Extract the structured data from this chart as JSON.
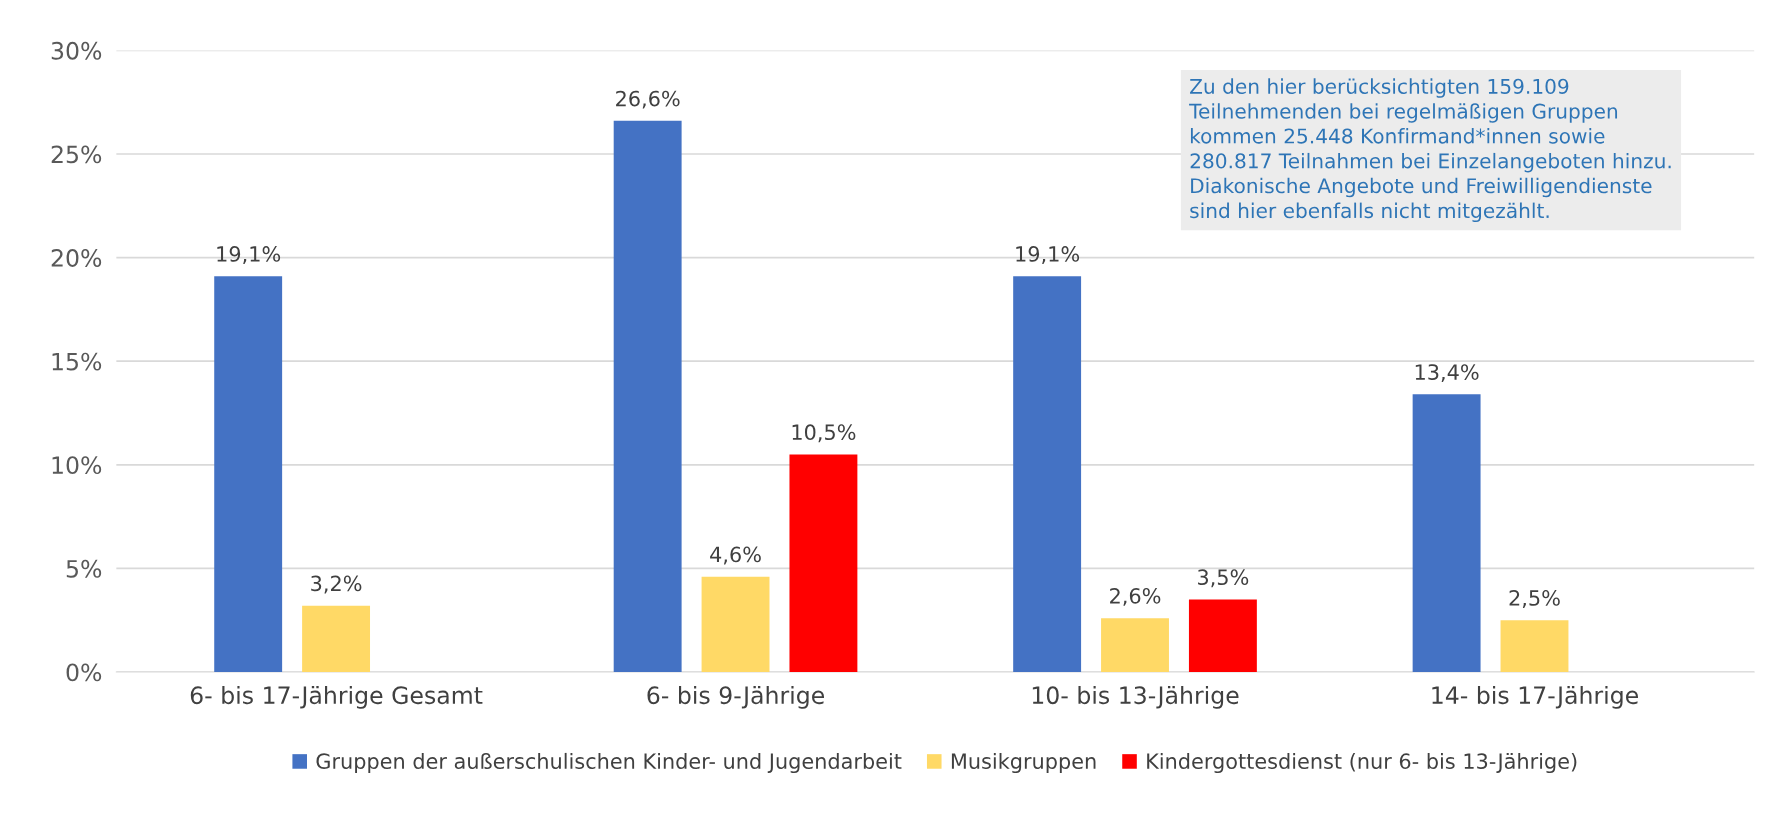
{
  "chart_data": {
    "type": "bar",
    "categories": [
      "6- bis 17-Jährige Gesamt",
      "6- bis 9-Jährige",
      "10- bis 13-Jährige",
      "14- bis 17-Jährige"
    ],
    "series": [
      {
        "name": "Gruppen der außerschulischen Kinder- und Jugendarbeit",
        "color": "#4472c4",
        "values": [
          19.1,
          26.6,
          19.1,
          13.4
        ],
        "value_labels": [
          "19,1%",
          "26,6%",
          "19,1%",
          "13,4%"
        ]
      },
      {
        "name": "Musikgruppen",
        "color": "#ffd966",
        "values": [
          3.2,
          4.6,
          2.6,
          2.5
        ],
        "value_labels": [
          "3,2%",
          "4,6%",
          "2,6%",
          "2,5%"
        ]
      },
      {
        "name": "Kindergottesdienst (nur 6- bis 13-Jährige)",
        "color": "#ff0000",
        "values": [
          null,
          10.5,
          3.5,
          null
        ],
        "value_labels": [
          null,
          "10,5%",
          "3,5%",
          null
        ]
      }
    ],
    "ylim": [
      0,
      30
    ],
    "yticks": [
      {
        "value": 0,
        "label": "0%"
      },
      {
        "value": 5,
        "label": "5%"
      },
      {
        "value": 10,
        "label": "10%"
      },
      {
        "value": 15,
        "label": "15%"
      },
      {
        "value": 20,
        "label": "20%"
      },
      {
        "value": 25,
        "label": "25%"
      },
      {
        "value": 30,
        "label": "30%"
      }
    ],
    "grid": "y",
    "legend": "bottom",
    "annotations": [
      "Zu den hier berücksichtigten 159.109\nTeilnehmenden bei regelmäßigen Gruppen\nkommen 25.448 Konfirmand*innen sowie\n280.817 Teilnahmen bei Einzelangeboten hinzu.\nDiakonische Angebote und Freiwilligendienste\nsind hier ebenfalls nicht mitgezählt."
    ]
  }
}
